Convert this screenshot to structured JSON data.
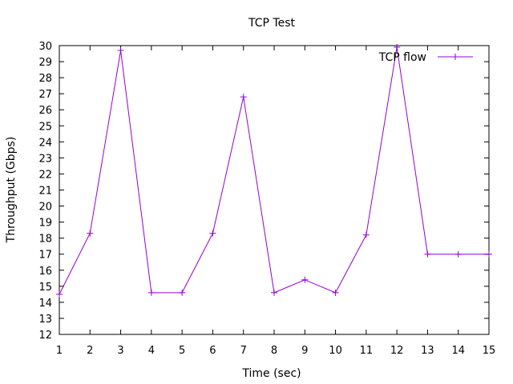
{
  "chart_data": {
    "type": "line",
    "title": "TCP Test",
    "xlabel": "Time (sec)",
    "ylabel": "Throughput (Gbps)",
    "xlim": [
      1,
      15
    ],
    "ylim": [
      12,
      30
    ],
    "x_ticks": [
      "1",
      "2",
      "3",
      "4",
      "5",
      "6",
      "7",
      "8",
      "9",
      "10",
      "11",
      "12",
      "13",
      "14",
      "15"
    ],
    "y_ticks": [
      "12",
      "13",
      "14",
      "15",
      "16",
      "17",
      "18",
      "19",
      "20",
      "21",
      "22",
      "23",
      "24",
      "25",
      "26",
      "27",
      "28",
      "29",
      "30"
    ],
    "grid": false,
    "legend_position": "top-right",
    "series": [
      {
        "name": "TCP flow",
        "color": "#9400d3",
        "marker": "plus",
        "x": [
          1,
          2,
          3,
          4,
          5,
          6,
          7,
          8,
          9,
          10,
          11,
          12,
          13,
          14,
          15
        ],
        "y": [
          14.5,
          18.3,
          29.7,
          14.6,
          14.6,
          18.3,
          26.8,
          14.6,
          15.4,
          14.6,
          18.2,
          29.9,
          17.0,
          17.0,
          17.0
        ]
      }
    ]
  }
}
